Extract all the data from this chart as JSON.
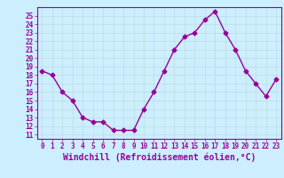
{
  "x": [
    0,
    1,
    2,
    3,
    4,
    5,
    6,
    7,
    8,
    9,
    10,
    11,
    12,
    13,
    14,
    15,
    16,
    17,
    18,
    19,
    20,
    21,
    22,
    23
  ],
  "y": [
    18.5,
    18.0,
    16.0,
    15.0,
    13.0,
    12.5,
    12.5,
    11.5,
    11.5,
    11.5,
    14.0,
    16.0,
    18.5,
    21.0,
    22.5,
    23.0,
    24.5,
    25.5,
    23.0,
    21.0,
    18.5,
    17.0,
    15.5,
    17.5
  ],
  "color": "#990099",
  "bg_color": "#cceeff",
  "grid_color": "#bbdddd",
  "ylim": [
    11,
    26
  ],
  "xlim": [
    -0.5,
    23.5
  ],
  "yticks": [
    11,
    12,
    13,
    14,
    15,
    16,
    17,
    18,
    19,
    20,
    21,
    22,
    23,
    24,
    25
  ],
  "xticks": [
    0,
    1,
    2,
    3,
    4,
    5,
    6,
    7,
    8,
    9,
    10,
    11,
    12,
    13,
    14,
    15,
    16,
    17,
    18,
    19,
    20,
    21,
    22,
    23
  ],
  "xlabel": "Windchill (Refroidissement éolien,°C)",
  "line_width": 1.0,
  "marker": "D",
  "marker_size": 2.5,
  "tick_fontsize": 5.5,
  "label_fontsize": 7.0,
  "tick_color": "#990099",
  "label_color": "#990099",
  "spine_color": "#990099"
}
